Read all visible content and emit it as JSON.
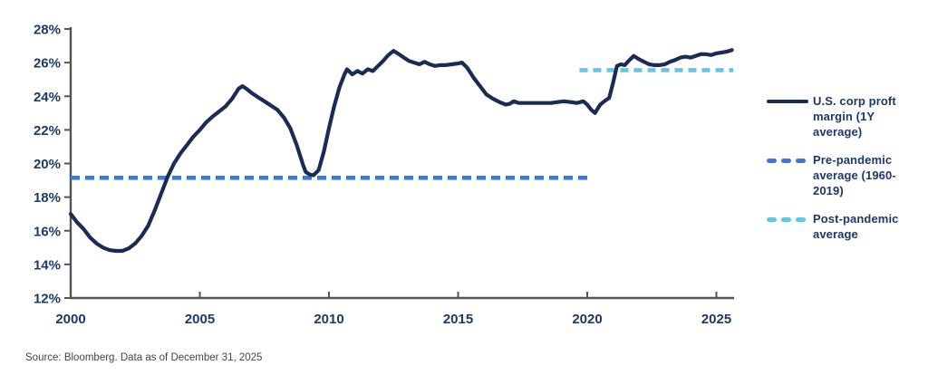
{
  "page": {
    "footer": "Source: Bloomberg. Data as of December 31, 2025"
  },
  "colors": {
    "series_navy": "#1a2c55",
    "pre_pandemic_blue": "#3c7ad6",
    "post_pandemic_cyan": "#5fc8e6",
    "axis_gray": "#545454",
    "label_navy": "#1d3869",
    "footer_gray": "#3e4552"
  },
  "legend": {
    "position": "right",
    "items": [
      {
        "label": "U.S. corp proft margin (1Y average)",
        "style": "solid",
        "color": "#1a2c55"
      },
      {
        "label": "Pre-pandemic average (1960-2019)",
        "style": "dashed",
        "color": "#3c7ad6"
      },
      {
        "label": "Post-pandemic average",
        "style": "dashed",
        "color": "#5fc8e6"
      }
    ]
  },
  "chart_data": {
    "type": "line",
    "title": "",
    "xlabel": "",
    "ylabel": "",
    "grid": false,
    "x_axis": {
      "range": [
        2000,
        2025.7
      ],
      "ticks": [
        {
          "value": 2000,
          "label": "2000"
        },
        {
          "value": 2005,
          "label": "2005"
        },
        {
          "value": 2010,
          "label": "2010"
        },
        {
          "value": 2015,
          "label": "2015"
        },
        {
          "value": 2020,
          "label": "2020"
        },
        {
          "value": 2025,
          "label": "2025"
        }
      ]
    },
    "y_axis": {
      "range": [
        12,
        28
      ],
      "unit": "%",
      "ticks": [
        {
          "value": 12,
          "label": "12%"
        },
        {
          "value": 14,
          "label": "14%"
        },
        {
          "value": 16,
          "label": "16%"
        },
        {
          "value": 18,
          "label": "18%"
        },
        {
          "value": 20,
          "label": "20%"
        },
        {
          "value": 22,
          "label": "22%"
        },
        {
          "value": 24,
          "label": "24%"
        },
        {
          "value": 26,
          "label": "26%"
        },
        {
          "value": 28,
          "label": "28%"
        }
      ]
    },
    "series": [
      {
        "name": "U.S. corp proft margin (1Y average)",
        "style": "solid",
        "color": "#1a2c55",
        "points": [
          [
            2000.0,
            17.0
          ],
          [
            2000.25,
            16.5
          ],
          [
            2000.5,
            16.1
          ],
          [
            2000.75,
            15.6
          ],
          [
            2001.0,
            15.25
          ],
          [
            2001.25,
            15.0
          ],
          [
            2001.5,
            14.85
          ],
          [
            2001.75,
            14.8
          ],
          [
            2002.0,
            14.8
          ],
          [
            2002.25,
            14.95
          ],
          [
            2002.5,
            15.25
          ],
          [
            2002.75,
            15.7
          ],
          [
            2003.0,
            16.3
          ],
          [
            2003.25,
            17.2
          ],
          [
            2003.5,
            18.2
          ],
          [
            2003.75,
            19.2
          ],
          [
            2004.0,
            20.0
          ],
          [
            2004.25,
            20.6
          ],
          [
            2004.5,
            21.1
          ],
          [
            2004.75,
            21.6
          ],
          [
            2005.0,
            22.0
          ],
          [
            2005.25,
            22.45
          ],
          [
            2005.5,
            22.8
          ],
          [
            2005.75,
            23.1
          ],
          [
            2006.0,
            23.4
          ],
          [
            2006.25,
            23.85
          ],
          [
            2006.5,
            24.45
          ],
          [
            2006.65,
            24.6
          ],
          [
            2006.8,
            24.45
          ],
          [
            2007.0,
            24.2
          ],
          [
            2007.25,
            23.95
          ],
          [
            2007.5,
            23.7
          ],
          [
            2007.75,
            23.45
          ],
          [
            2008.0,
            23.2
          ],
          [
            2008.25,
            22.75
          ],
          [
            2008.5,
            22.1
          ],
          [
            2008.75,
            21.1
          ],
          [
            2009.0,
            19.9
          ],
          [
            2009.1,
            19.5
          ],
          [
            2009.25,
            19.35
          ],
          [
            2009.4,
            19.3
          ],
          [
            2009.6,
            19.6
          ],
          [
            2009.8,
            20.7
          ],
          [
            2010.0,
            22.1
          ],
          [
            2010.2,
            23.4
          ],
          [
            2010.4,
            24.5
          ],
          [
            2010.6,
            25.3
          ],
          [
            2010.7,
            25.6
          ],
          [
            2010.9,
            25.3
          ],
          [
            2011.1,
            25.5
          ],
          [
            2011.3,
            25.35
          ],
          [
            2011.5,
            25.6
          ],
          [
            2011.7,
            25.5
          ],
          [
            2011.9,
            25.8
          ],
          [
            2012.1,
            26.1
          ],
          [
            2012.3,
            26.45
          ],
          [
            2012.5,
            26.7
          ],
          [
            2012.7,
            26.5
          ],
          [
            2012.9,
            26.3
          ],
          [
            2013.1,
            26.1
          ],
          [
            2013.3,
            26.0
          ],
          [
            2013.5,
            25.9
          ],
          [
            2013.7,
            26.05
          ],
          [
            2013.9,
            25.9
          ],
          [
            2014.1,
            25.8
          ],
          [
            2014.3,
            25.85
          ],
          [
            2014.5,
            25.85
          ],
          [
            2014.75,
            25.9
          ],
          [
            2015.0,
            25.95
          ],
          [
            2015.15,
            26.0
          ],
          [
            2015.35,
            25.7
          ],
          [
            2015.6,
            25.1
          ],
          [
            2015.85,
            24.6
          ],
          [
            2016.1,
            24.1
          ],
          [
            2016.35,
            23.85
          ],
          [
            2016.6,
            23.65
          ],
          [
            2016.85,
            23.5
          ],
          [
            2017.0,
            23.55
          ],
          [
            2017.15,
            23.7
          ],
          [
            2017.35,
            23.6
          ],
          [
            2017.6,
            23.6
          ],
          [
            2017.85,
            23.6
          ],
          [
            2018.1,
            23.6
          ],
          [
            2018.35,
            23.6
          ],
          [
            2018.6,
            23.6
          ],
          [
            2018.85,
            23.65
          ],
          [
            2019.1,
            23.7
          ],
          [
            2019.35,
            23.65
          ],
          [
            2019.6,
            23.6
          ],
          [
            2019.85,
            23.7
          ],
          [
            2020.0,
            23.5
          ],
          [
            2020.15,
            23.2
          ],
          [
            2020.3,
            23.0
          ],
          [
            2020.5,
            23.5
          ],
          [
            2020.7,
            23.75
          ],
          [
            2020.85,
            23.9
          ],
          [
            2021.0,
            24.8
          ],
          [
            2021.15,
            25.8
          ],
          [
            2021.3,
            25.9
          ],
          [
            2021.45,
            25.85
          ],
          [
            2021.6,
            26.1
          ],
          [
            2021.8,
            26.4
          ],
          [
            2022.0,
            26.2
          ],
          [
            2022.2,
            26.05
          ],
          [
            2022.4,
            25.9
          ],
          [
            2022.6,
            25.85
          ],
          [
            2022.8,
            25.85
          ],
          [
            2023.0,
            25.9
          ],
          [
            2023.2,
            26.05
          ],
          [
            2023.4,
            26.15
          ],
          [
            2023.6,
            26.3
          ],
          [
            2023.8,
            26.35
          ],
          [
            2024.0,
            26.3
          ],
          [
            2024.2,
            26.4
          ],
          [
            2024.4,
            26.5
          ],
          [
            2024.6,
            26.5
          ],
          [
            2024.8,
            26.45
          ],
          [
            2025.0,
            26.55
          ],
          [
            2025.2,
            26.6
          ],
          [
            2025.4,
            26.65
          ],
          [
            2025.6,
            26.75
          ]
        ]
      },
      {
        "name": "Pre-pandemic average (1960-2019)",
        "style": "dashed",
        "color": "#3c7ad6",
        "value": 19.15,
        "x_start": 2000.0,
        "x_end": 2020.2
      },
      {
        "name": "Post-pandemic average",
        "style": "dashed",
        "color": "#5fc8e6",
        "value": 25.55,
        "x_start": 2019.7,
        "x_end": 2025.65
      }
    ]
  }
}
